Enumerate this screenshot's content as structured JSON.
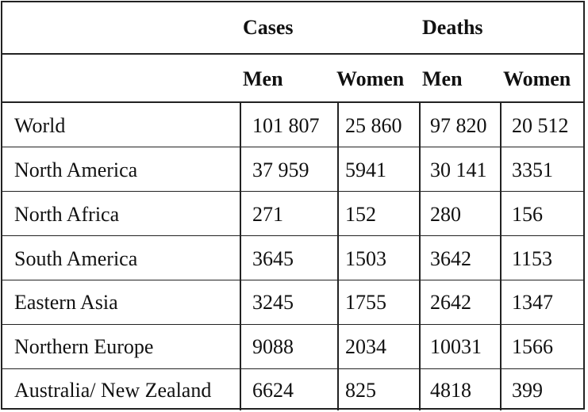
{
  "table": {
    "group_headers": [
      "Cases",
      "Deaths"
    ],
    "sub_headers": [
      "Men",
      "Women",
      "Men",
      "Women"
    ],
    "rows": [
      {
        "region": "World",
        "values": [
          "101 807",
          "25 860",
          "97 820",
          "20 512"
        ]
      },
      {
        "region": "North America",
        "values": [
          "37 959",
          "5941",
          "30 141",
          "3351"
        ]
      },
      {
        "region": "North Africa",
        "values": [
          "271",
          "152",
          "280",
          "156"
        ]
      },
      {
        "region": "South America",
        "values": [
          "3645",
          "1503",
          "3642",
          "1153"
        ]
      },
      {
        "region": "Eastern Asia",
        "values": [
          "3245",
          "1755",
          "2642",
          "1347"
        ]
      },
      {
        "region": "Northern Europe",
        "values": [
          "9088",
          "2034",
          "10031",
          "1566"
        ]
      },
      {
        "region": "Australia/ New Zealand",
        "values": [
          "6624",
          "825",
          "4818",
          "399"
        ]
      }
    ]
  }
}
